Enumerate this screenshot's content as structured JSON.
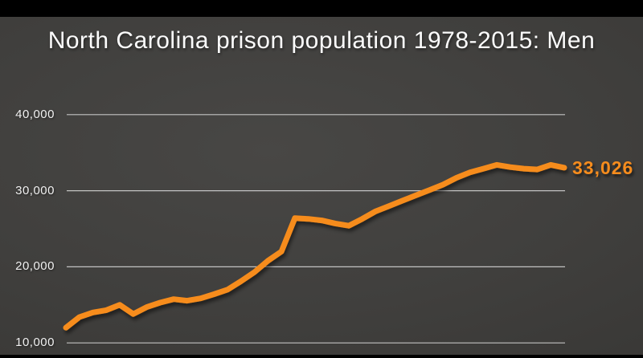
{
  "slide": {
    "title": "North Carolina prison population 1978-2015: Men"
  },
  "colors": {
    "line": "#f68c1d",
    "end_label": "#f68c1d",
    "gridline": "#d9d9d9",
    "axis_text": "#f1f1f1",
    "title_text": "#fcfcfc",
    "background": "#403f3d",
    "letterbox": "#000000"
  },
  "chart_data": {
    "type": "line",
    "title": "North Carolina prison population 1978-2015: Men",
    "xlabel": "",
    "ylabel": "",
    "legend": "none",
    "grid": "horizontal-only",
    "xlim": [
      1978,
      2015
    ],
    "ylim": [
      9500,
      42000
    ],
    "x": [
      1978,
      1979,
      1980,
      1981,
      1982,
      1983,
      1984,
      1985,
      1986,
      1987,
      1988,
      1989,
      1990,
      1991,
      1992,
      1993,
      1994,
      1995,
      1996,
      1997,
      1998,
      1999,
      2000,
      2001,
      2002,
      2003,
      2004,
      2005,
      2006,
      2007,
      2008,
      2009,
      2010,
      2011,
      2012,
      2013,
      2014,
      2015
    ],
    "series": [
      {
        "name": "Men",
        "color": "#f68c1d",
        "values": [
          12000,
          13400,
          14000,
          14300,
          15000,
          13800,
          14700,
          15300,
          15750,
          15550,
          15850,
          16400,
          17000,
          18100,
          19300,
          20800,
          22000,
          26400,
          26300,
          26100,
          25700,
          25400,
          26300,
          27300,
          28000,
          28700,
          29400,
          30100,
          30800,
          31700,
          32400,
          32900,
          33400,
          33100,
          32900,
          32800,
          33400,
          33026
        ]
      }
    ],
    "end_value": 33026,
    "end_label": "33,026",
    "y_ticks": [
      {
        "value": 10000,
        "label": "10,000"
      },
      {
        "value": 20000,
        "label": "20,000"
      },
      {
        "value": 30000,
        "label": "30,000"
      },
      {
        "value": 40000,
        "label": "40,000"
      }
    ]
  }
}
